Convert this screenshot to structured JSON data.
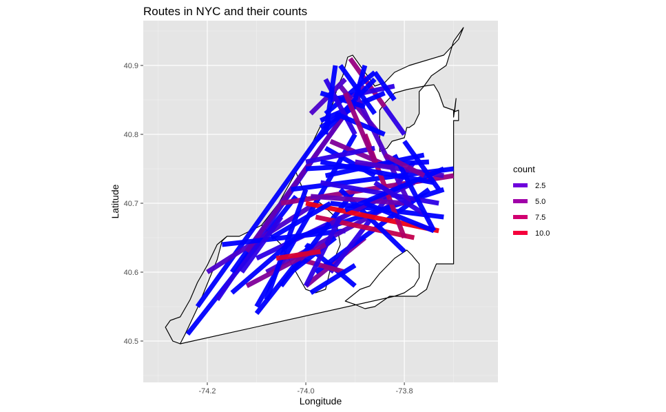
{
  "chart_data": {
    "type": "line",
    "title": "Routes in NYC and their counts",
    "xlabel": "Longitude",
    "ylabel": "Latitude",
    "xlim": [
      -74.33,
      -73.61
    ],
    "ylim": [
      40.44,
      40.965
    ],
    "x_ticks": [
      -74.2,
      -74.0,
      -73.8
    ],
    "x_tick_labels": [
      "-74.2",
      "-74.0",
      "-73.8"
    ],
    "y_ticks": [
      40.5,
      40.6,
      40.7,
      40.8,
      40.9
    ],
    "y_tick_labels": [
      "40.5",
      "40.6",
      "40.7",
      "40.8",
      "40.9"
    ],
    "grid": true,
    "panel_background": "#e5e5e5",
    "legend": {
      "title": "count",
      "placement": "right",
      "entries": [
        {
          "label": "2.5",
          "value": 2.5,
          "color": "#6e00dc"
        },
        {
          "label": "5.0",
          "value": 5.0,
          "color": "#a000a8"
        },
        {
          "label": "7.5",
          "value": 7.5,
          "color": "#d10070"
        },
        {
          "label": "10.0",
          "value": 10.0,
          "color": "#f5003c"
        }
      ]
    },
    "color_scale": {
      "low": "#0000ff",
      "high": "#ff0000",
      "min": 1,
      "max": 11
    },
    "outline": [
      [
        -74.255,
        40.496
      ],
      [
        -74.245,
        40.51
      ],
      [
        -74.22,
        40.548
      ],
      [
        -74.18,
        40.618
      ],
      [
        -74.17,
        40.645
      ],
      [
        -74.16,
        40.652
      ],
      [
        -74.135,
        40.652
      ],
      [
        -74.09,
        40.668
      ],
      [
        -74.055,
        40.7
      ],
      [
        -74.02,
        40.745
      ],
      [
        -74.0,
        40.77
      ],
      [
        -73.985,
        40.79
      ],
      [
        -73.965,
        40.82
      ],
      [
        -73.945,
        40.845
      ],
      [
        -73.935,
        40.87
      ],
      [
        -73.925,
        40.885
      ],
      [
        -73.915,
        40.912
      ],
      [
        -73.905,
        40.915
      ],
      [
        -73.88,
        40.89
      ],
      [
        -73.86,
        40.87
      ],
      [
        -73.84,
        40.875
      ],
      [
        -73.82,
        40.89
      ],
      [
        -73.79,
        40.9
      ],
      [
        -73.72,
        40.915
      ],
      [
        -73.69,
        40.938
      ],
      [
        -73.68,
        40.955
      ],
      [
        -73.7,
        40.935
      ],
      [
        -73.715,
        40.9
      ],
      [
        -73.745,
        40.885
      ],
      [
        -73.76,
        40.87
      ],
      [
        -73.795,
        40.865
      ],
      [
        -73.82,
        40.86
      ],
      [
        -73.84,
        40.845
      ],
      [
        -73.85,
        40.835
      ],
      [
        -73.85,
        40.8
      ],
      [
        -73.85,
        40.775
      ],
      [
        -73.835,
        40.78
      ],
      [
        -73.825,
        40.79
      ],
      [
        -73.8,
        40.795
      ],
      [
        -73.795,
        40.81
      ],
      [
        -73.79,
        40.81
      ],
      [
        -73.78,
        40.815
      ],
      [
        -73.77,
        40.83
      ],
      [
        -73.77,
        40.862
      ],
      [
        -73.76,
        40.87
      ],
      [
        -73.74,
        40.872
      ],
      [
        -73.73,
        40.86
      ],
      [
        -73.72,
        40.84
      ],
      [
        -73.7,
        40.835
      ],
      [
        -73.7,
        40.825
      ],
      [
        -73.695,
        40.852
      ],
      [
        -73.698,
        40.833
      ],
      [
        -73.69,
        40.835
      ],
      [
        -73.69,
        40.82
      ],
      [
        -73.7,
        40.82
      ],
      [
        -73.7,
        40.75
      ],
      [
        -73.7,
        40.7
      ],
      [
        -73.7,
        40.66
      ],
      [
        -73.7,
        40.62
      ],
      [
        -73.7,
        40.612
      ],
      [
        -73.735,
        40.612
      ],
      [
        -73.745,
        40.595
      ],
      [
        -73.755,
        40.575
      ],
      [
        -73.775,
        40.565
      ],
      [
        -73.8,
        40.565
      ],
      [
        -73.83,
        40.565
      ],
      [
        -73.86,
        40.55
      ],
      [
        -73.88,
        40.547
      ],
      [
        -73.9,
        40.553
      ],
      [
        -73.92,
        40.558
      ],
      [
        -73.89,
        40.575
      ],
      [
        -73.87,
        40.58
      ],
      [
        -73.85,
        40.598
      ],
      [
        -73.82,
        40.62
      ],
      [
        -73.795,
        40.632
      ],
      [
        -73.785,
        40.625
      ],
      [
        -73.77,
        40.612
      ],
      [
        -73.77,
        40.592
      ],
      [
        -73.78,
        40.58
      ],
      [
        -73.8,
        40.57
      ],
      [
        -73.82,
        40.565
      ]
    ],
    "outline_west": [
      [
        -74.255,
        40.496
      ],
      [
        -74.27,
        40.5
      ],
      [
        -74.285,
        40.52
      ],
      [
        -74.275,
        40.53
      ],
      [
        -74.255,
        40.535
      ],
      [
        -74.235,
        40.56
      ],
      [
        -74.22,
        40.585
      ],
      [
        -74.2,
        40.61
      ],
      [
        -74.18,
        40.64
      ],
      [
        -74.16,
        40.652
      ]
    ],
    "outline_center": [
      [
        -74.02,
        40.745
      ],
      [
        -74.0,
        40.71
      ],
      [
        -73.97,
        40.7
      ],
      [
        -73.94,
        40.68
      ],
      [
        -73.93,
        40.64
      ],
      [
        -73.95,
        40.605
      ],
      [
        -73.96,
        40.575
      ],
      [
        -73.98,
        40.57
      ],
      [
        -74.0,
        40.575
      ],
      [
        -74.02,
        40.6
      ],
      [
        -74.035,
        40.62
      ],
      [
        -74.05,
        40.64
      ],
      [
        -74.09,
        40.668
      ]
    ],
    "series": [
      {
        "name": "routes",
        "segments": [
          [
            -74.24,
            40.51,
            -74.02,
            40.71,
            1
          ],
          [
            -74.22,
            40.55,
            -73.95,
            40.82,
            1
          ],
          [
            -74.18,
            40.56,
            -73.97,
            40.78,
            2
          ],
          [
            -74.15,
            40.6,
            -73.9,
            40.85,
            1
          ],
          [
            -74.2,
            40.6,
            -73.98,
            40.7,
            3
          ],
          [
            -74.1,
            40.55,
            -73.9,
            40.8,
            1
          ],
          [
            -74.12,
            40.63,
            -73.88,
            40.87,
            4
          ],
          [
            -74.17,
            40.64,
            -73.92,
            40.66,
            1
          ],
          [
            -74.1,
            40.62,
            -73.78,
            40.73,
            2
          ],
          [
            -74.08,
            40.6,
            -73.82,
            40.7,
            3
          ],
          [
            -74.05,
            40.58,
            -73.9,
            40.72,
            1
          ],
          [
            -74.0,
            40.58,
            -73.88,
            40.65,
            5
          ],
          [
            -73.98,
            40.6,
            -73.75,
            40.72,
            1
          ],
          [
            -73.95,
            40.6,
            -73.78,
            40.76,
            2
          ],
          [
            -74.02,
            40.65,
            -73.72,
            40.72,
            1
          ],
          [
            -74.05,
            40.7,
            -73.7,
            40.74,
            6
          ],
          [
            -74.03,
            40.72,
            -73.7,
            40.75,
            1
          ],
          [
            -74.0,
            40.75,
            -73.75,
            40.76,
            1
          ],
          [
            -73.97,
            40.73,
            -73.73,
            40.7,
            2
          ],
          [
            -73.95,
            40.7,
            -73.72,
            40.68,
            1
          ],
          [
            -73.98,
            40.68,
            -73.78,
            40.65,
            8
          ],
          [
            -73.93,
            40.72,
            -73.8,
            40.63,
            1
          ],
          [
            -73.95,
            40.67,
            -73.82,
            40.72,
            3
          ],
          [
            -74.0,
            40.7,
            -73.73,
            40.66,
            10
          ],
          [
            -73.93,
            40.9,
            -73.86,
            40.83,
            1
          ],
          [
            -73.91,
            40.91,
            -73.84,
            40.84,
            6
          ],
          [
            -73.97,
            40.82,
            -73.84,
            40.86,
            1
          ],
          [
            -73.95,
            40.85,
            -73.82,
            40.87,
            2
          ],
          [
            -73.96,
            40.83,
            -73.86,
            40.89,
            1
          ],
          [
            -73.93,
            40.87,
            -73.85,
            40.8,
            4
          ],
          [
            -73.98,
            40.79,
            -73.86,
            40.88,
            1
          ],
          [
            -73.95,
            40.79,
            -73.82,
            40.75,
            5
          ],
          [
            -73.88,
            40.8,
            -73.8,
            40.65,
            7
          ],
          [
            -73.9,
            40.86,
            -73.79,
            40.7,
            3
          ],
          [
            -73.86,
            40.89,
            -73.82,
            40.85,
            1
          ],
          [
            -73.84,
            40.84,
            -73.8,
            40.8,
            2
          ],
          [
            -74.0,
            40.64,
            -73.9,
            40.58,
            1
          ],
          [
            -74.02,
            40.62,
            -73.92,
            40.6,
            6
          ],
          [
            -74.03,
            40.6,
            -73.94,
            40.65,
            1
          ],
          [
            -74.0,
            40.58,
            -73.93,
            40.68,
            2
          ],
          [
            -73.99,
            40.57,
            -73.9,
            40.61,
            1
          ],
          [
            -74.1,
            40.54,
            -73.99,
            40.64,
            1
          ],
          [
            -74.12,
            40.58,
            -73.96,
            40.64,
            5
          ],
          [
            -74.15,
            40.57,
            -74.02,
            40.65,
            1
          ],
          [
            -74.13,
            40.6,
            -74.05,
            40.68,
            2
          ],
          [
            -74.08,
            40.56,
            -74.0,
            40.72,
            1
          ],
          [
            -74.06,
            40.62,
            -73.97,
            40.63,
            9
          ],
          [
            -74.07,
            40.65,
            -73.95,
            40.7,
            1
          ],
          [
            -73.96,
            40.78,
            -73.86,
            40.74,
            1
          ],
          [
            -74.0,
            40.76,
            -73.86,
            40.78,
            2
          ],
          [
            -73.99,
            40.71,
            -73.8,
            40.7,
            4
          ],
          [
            -73.96,
            40.74,
            -73.76,
            40.77,
            1
          ],
          [
            -73.97,
            40.76,
            -73.74,
            40.73,
            1
          ],
          [
            -73.9,
            40.76,
            -73.72,
            40.74,
            3
          ],
          [
            -73.92,
            40.69,
            -73.72,
            40.75,
            1
          ],
          [
            -73.88,
            40.7,
            -73.74,
            40.66,
            1
          ],
          [
            -73.86,
            40.73,
            -73.75,
            40.68,
            2
          ],
          [
            -73.82,
            40.77,
            -73.74,
            40.66,
            1
          ],
          [
            -73.8,
            40.79,
            -73.73,
            40.72,
            1
          ],
          [
            -73.84,
            40.77,
            -73.76,
            40.74,
            5
          ],
          [
            -73.97,
            40.81,
            -73.9,
            40.84,
            1
          ],
          [
            -73.99,
            40.83,
            -73.92,
            40.88,
            3
          ],
          [
            -73.97,
            40.86,
            -73.88,
            40.84,
            1
          ],
          [
            -73.96,
            40.88,
            -73.9,
            40.8,
            2
          ],
          [
            -73.94,
            40.83,
            -73.84,
            40.8,
            1
          ],
          [
            -73.92,
            40.86,
            -73.86,
            40.76,
            6
          ],
          [
            -73.9,
            40.85,
            -73.88,
            40.9,
            1
          ],
          [
            -73.96,
            40.8,
            -73.94,
            40.9,
            1
          ]
        ]
      }
    ]
  }
}
